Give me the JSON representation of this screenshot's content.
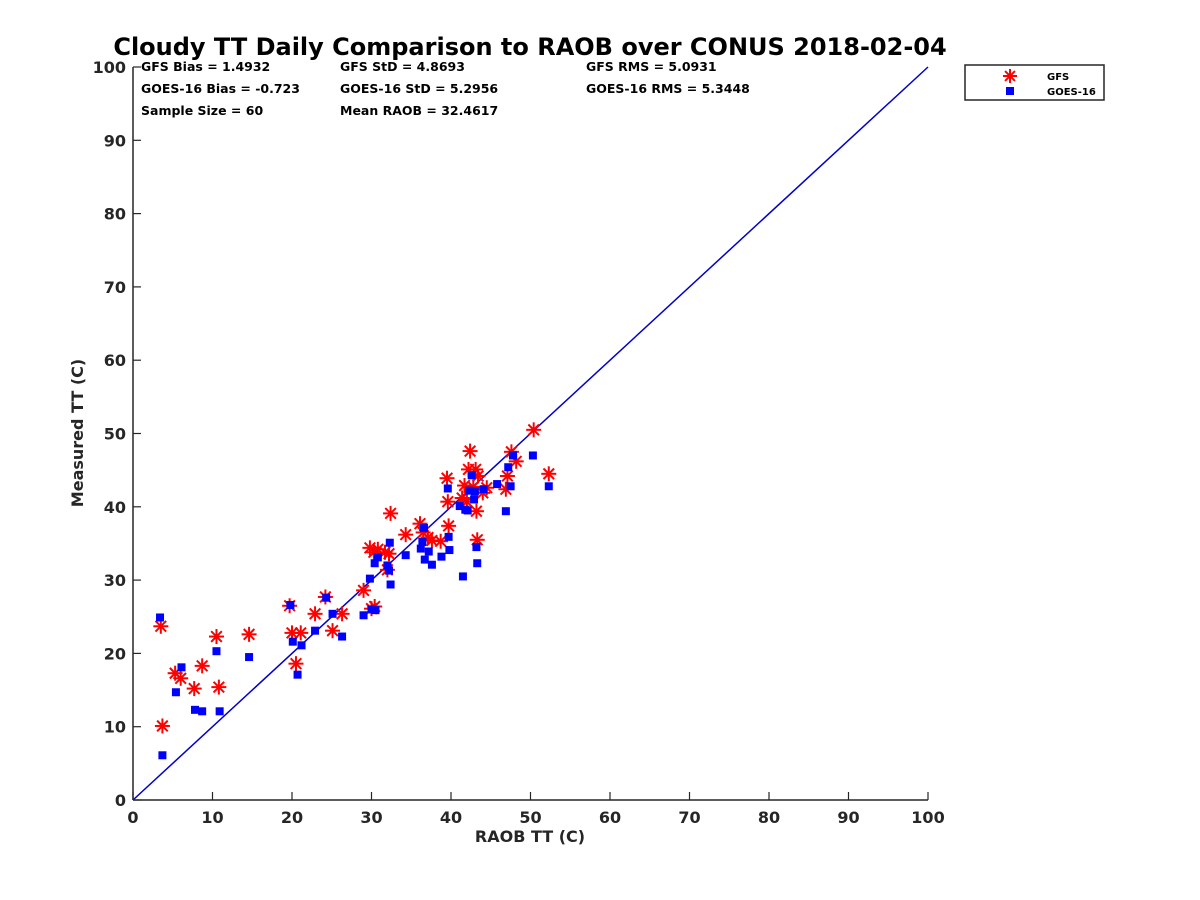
{
  "chart_data": {
    "type": "scatter",
    "title": "Cloudy TT Daily Comparison to RAOB over CONUS 2018-02-04",
    "xlabel": "RAOB TT (C)",
    "ylabel": "Measured TT (C)",
    "xlim": [
      0,
      100
    ],
    "ylim": [
      0,
      100
    ],
    "xticks": [
      "0",
      "10",
      "20",
      "30",
      "40",
      "50",
      "60",
      "70",
      "80",
      "90",
      "100"
    ],
    "yticks": [
      "0",
      "10",
      "20",
      "30",
      "40",
      "50",
      "60",
      "70",
      "80",
      "90",
      "100"
    ],
    "grid": false,
    "legend_position": "top-right-outside",
    "reference_line": {
      "x": [
        0,
        100
      ],
      "y": [
        0,
        100
      ],
      "color": "#0000cc"
    },
    "stats": [
      [
        "GFS Bias = 1.4932",
        "GFS StD = 4.8693",
        "GFS RMS = 5.0931"
      ],
      [
        "GOES-16 Bias = -0.723",
        "GOES-16 StD = 5.2956",
        "GOES-16 RMS = 5.3448"
      ],
      [
        "Sample Size = 60",
        "Mean RAOB = 32.4617",
        ""
      ]
    ],
    "series": [
      {
        "name": "GFS",
        "marker": "asterisk",
        "color": "#ff0000",
        "points": [
          [
            3.5,
            23.7
          ],
          [
            3.7,
            10.1
          ],
          [
            5.3,
            17.3
          ],
          [
            6.0,
            16.6
          ],
          [
            7.7,
            15.2
          ],
          [
            8.7,
            18.3
          ],
          [
            10.5,
            22.3
          ],
          [
            10.8,
            15.4
          ],
          [
            14.6,
            22.6
          ],
          [
            19.7,
            26.5
          ],
          [
            20.0,
            22.8
          ],
          [
            20.5,
            18.6
          ],
          [
            21.1,
            22.8
          ],
          [
            22.9,
            25.4
          ],
          [
            24.2,
            27.7
          ],
          [
            25.1,
            23.1
          ],
          [
            26.3,
            25.4
          ],
          [
            29.0,
            28.6
          ],
          [
            29.8,
            34.4
          ],
          [
            30.0,
            26.1
          ],
          [
            30.3,
            33.8
          ],
          [
            30.4,
            26.4
          ],
          [
            30.8,
            34.2
          ],
          [
            31.7,
            33.8
          ],
          [
            32.0,
            31.4
          ],
          [
            32.2,
            33.6
          ],
          [
            32.4,
            39.1
          ],
          [
            34.3,
            36.2
          ],
          [
            36.1,
            37.7
          ],
          [
            36.5,
            36.5
          ],
          [
            37.1,
            35.8
          ],
          [
            37.6,
            35.4
          ],
          [
            38.7,
            35.3
          ],
          [
            39.5,
            43.9
          ],
          [
            39.6,
            40.7
          ],
          [
            39.7,
            37.4
          ],
          [
            41.4,
            41.2
          ],
          [
            41.7,
            42.9
          ],
          [
            42.0,
            40.7
          ],
          [
            42.2,
            45.1
          ],
          [
            42.4,
            47.6
          ],
          [
            42.8,
            42.7
          ],
          [
            43.1,
            45.1
          ],
          [
            43.2,
            39.4
          ],
          [
            43.3,
            35.5
          ],
          [
            43.4,
            44.2
          ],
          [
            44.0,
            41.9
          ],
          [
            44.5,
            42.6
          ],
          [
            46.9,
            42.4
          ],
          [
            47.1,
            44.2
          ],
          [
            47.6,
            47.5
          ],
          [
            48.2,
            46.2
          ],
          [
            50.4,
            50.5
          ],
          [
            52.3,
            44.5
          ]
        ]
      },
      {
        "name": "GOES-16",
        "marker": "square",
        "color": "#0000ff",
        "points": [
          [
            3.4,
            24.9
          ],
          [
            3.7,
            6.1
          ],
          [
            5.4,
            14.7
          ],
          [
            6.1,
            18.1
          ],
          [
            7.8,
            12.3
          ],
          [
            8.7,
            12.1
          ],
          [
            10.5,
            20.3
          ],
          [
            10.9,
            12.1
          ],
          [
            14.6,
            19.5
          ],
          [
            19.8,
            26.6
          ],
          [
            20.1,
            21.6
          ],
          [
            20.7,
            17.1
          ],
          [
            21.2,
            21.1
          ],
          [
            22.9,
            23.1
          ],
          [
            24.3,
            27.6
          ],
          [
            25.1,
            25.4
          ],
          [
            26.3,
            22.3
          ],
          [
            29.0,
            25.2
          ],
          [
            29.8,
            30.2
          ],
          [
            30.0,
            26.0
          ],
          [
            30.4,
            32.3
          ],
          [
            30.5,
            25.9
          ],
          [
            30.8,
            33.1
          ],
          [
            32.0,
            32.0
          ],
          [
            32.2,
            31.3
          ],
          [
            32.3,
            35.1
          ],
          [
            32.4,
            29.4
          ],
          [
            34.3,
            33.4
          ],
          [
            36.2,
            34.3
          ],
          [
            36.4,
            35.2
          ],
          [
            36.6,
            37.1
          ],
          [
            36.7,
            32.8
          ],
          [
            37.2,
            33.9
          ],
          [
            37.6,
            32.1
          ],
          [
            38.8,
            33.2
          ],
          [
            39.6,
            42.5
          ],
          [
            39.7,
            35.9
          ],
          [
            39.8,
            34.1
          ],
          [
            41.1,
            40.1
          ],
          [
            41.5,
            30.5
          ],
          [
            41.8,
            39.6
          ],
          [
            42.1,
            39.5
          ],
          [
            42.3,
            42.2
          ],
          [
            42.6,
            44.3
          ],
          [
            42.9,
            41.0
          ],
          [
            43.0,
            42.1
          ],
          [
            43.2,
            34.5
          ],
          [
            43.3,
            32.3
          ],
          [
            44.1,
            42.4
          ],
          [
            45.8,
            43.1
          ],
          [
            46.9,
            39.4
          ],
          [
            47.2,
            45.4
          ],
          [
            47.5,
            42.8
          ],
          [
            47.8,
            47.0
          ],
          [
            50.3,
            47.0
          ],
          [
            52.3,
            42.8
          ]
        ]
      }
    ]
  }
}
